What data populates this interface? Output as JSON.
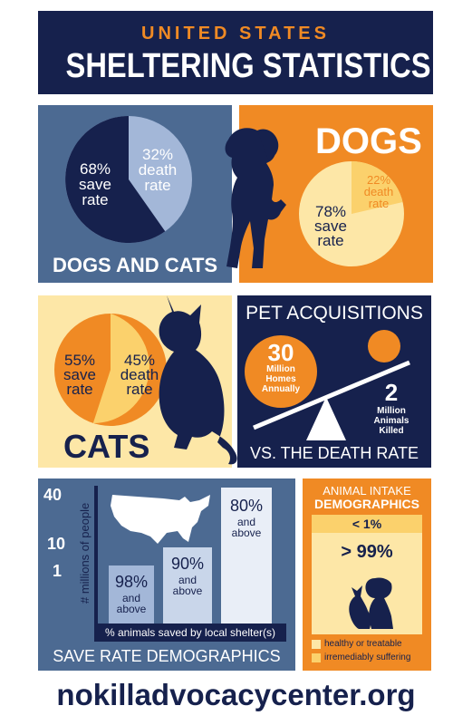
{
  "colors": {
    "navy": "#16214d",
    "slate": "#4c6a92",
    "orange": "#f08a24",
    "yellow": "#fbd16c",
    "cream": "#fde7a7",
    "lightblue": "#a3b7d8",
    "white": "#ffffff"
  },
  "header": {
    "kicker": "UNITED STATES",
    "title": "SHELTERING STATISTICS"
  },
  "dogs_and_cats": {
    "heading": "DOGS AND CATS",
    "save_label": "68%\nsave\nrate",
    "death_label": "32%\ndeath\nrate",
    "save_pct": 68,
    "death_pct": 32
  },
  "dogs": {
    "heading": "DOGS",
    "save_label": "78%\nsave\nrate",
    "death_label": "22%\ndeath\nrate",
    "save_pct": 78,
    "death_pct": 22
  },
  "cats": {
    "heading": "CATS",
    "save_label": "55%\nsave\nrate",
    "death_label": "45%\ndeath\nrate",
    "save_pct": 55,
    "death_pct": 45
  },
  "pet_acquisitions": {
    "heading": "PET ACQUISITIONS",
    "homes_number": "30",
    "homes_caption": "Million\nHomes\nAnnually",
    "killed_number": "2",
    "killed_caption": "Million\nAnimals\nKilled",
    "footer": "VS. THE DEATH RATE"
  },
  "save_rate_demographics": {
    "heading": "SAVE RATE DEMOGRAPHICS",
    "y_axis_label": "# millions of people",
    "y_ticks": [
      "40",
      "10",
      "1"
    ],
    "x_axis_label": "% animals saved by local shelter(s)",
    "bars": [
      {
        "pct": "98%",
        "caption": "and\nabove",
        "millions": 1
      },
      {
        "pct": "90%",
        "caption": "and\nabove",
        "millions": 10
      },
      {
        "pct": "80%",
        "caption": "and\nabove",
        "millions": 40
      }
    ]
  },
  "animal_intake": {
    "heading_line1": "ANIMAL INTAKE",
    "heading_line2": "DEMOGRAPHICS",
    "small_pct": "< 1%",
    "large_pct": "> 99%",
    "legend": [
      {
        "label": "healthy or treatable",
        "color": "#fde7a7"
      },
      {
        "label": "irremediably suffering",
        "color": "#fbd16c"
      }
    ]
  },
  "footer": {
    "url": "nokilladvocacycenter.org"
  }
}
